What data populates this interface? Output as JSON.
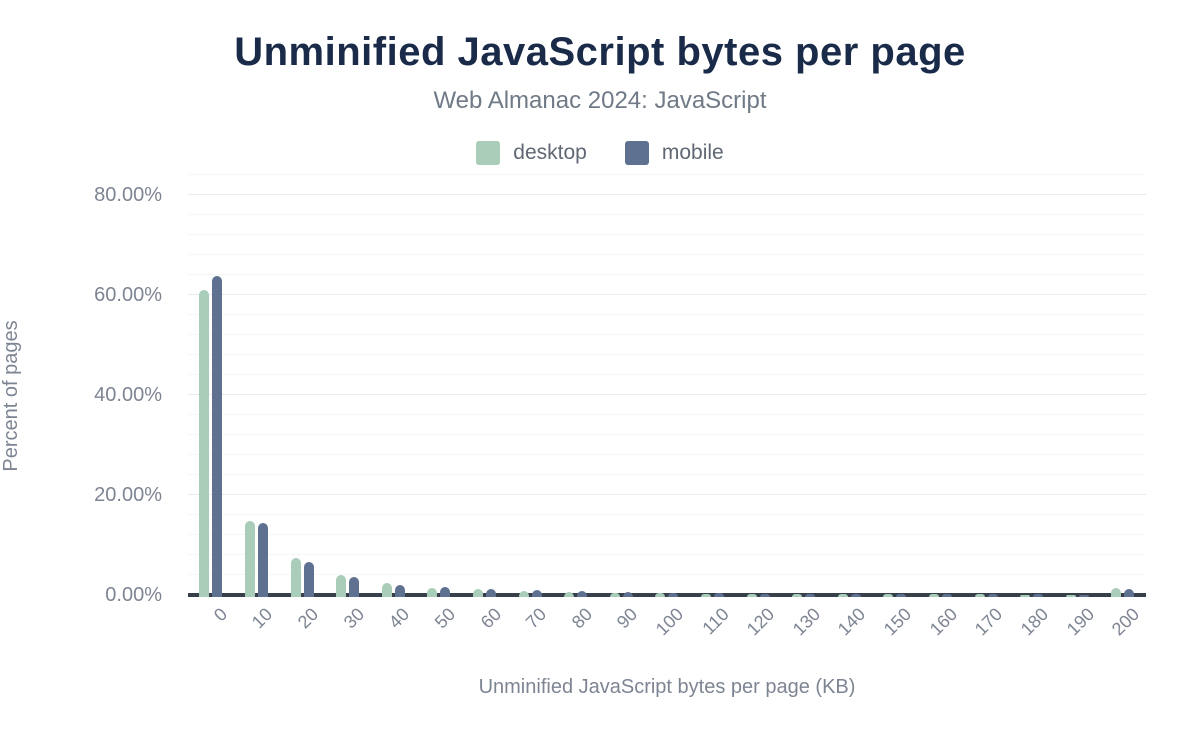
{
  "header": {
    "title": "Unminified JavaScript bytes per page",
    "subtitle": "Web Almanac 2024: JavaScript"
  },
  "legend": [
    {
      "label": "desktop",
      "color": "#a9cdb9"
    },
    {
      "label": "mobile",
      "color": "#5e7190"
    }
  ],
  "colors": {
    "title": "#1a2b49",
    "desktop_series": "#a9cdb9",
    "mobile_series": "#5e7190",
    "axis_line": "#373f4a",
    "axis_text": "#7d8593"
  },
  "chart_data": {
    "type": "bar",
    "title": "Unminified JavaScript bytes per page",
    "subtitle": "Web Almanac 2024: JavaScript",
    "categories": [
      "0",
      "10",
      "20",
      "30",
      "40",
      "50",
      "60",
      "70",
      "80",
      "90",
      "100",
      "110",
      "120",
      "130",
      "140",
      "150",
      "160",
      "170",
      "180",
      "190",
      "200"
    ],
    "series": [
      {
        "name": "desktop",
        "color": "#a9cdb9",
        "values": [
          61.0,
          14.9,
          7.4,
          4.1,
          2.4,
          1.5,
          1.2,
          0.9,
          0.7,
          0.5,
          0.5,
          0.3,
          0.3,
          0.25,
          0.2,
          0.2,
          0.2,
          0.15,
          0.1,
          0.1,
          1.5
        ]
      },
      {
        "name": "mobile",
        "color": "#5e7190",
        "values": [
          63.8,
          14.5,
          6.6,
          3.6,
          2.1,
          1.6,
          1.2,
          1.0,
          0.75,
          0.55,
          0.5,
          0.35,
          0.3,
          0.25,
          0.2,
          0.2,
          0.2,
          0.15,
          0.15,
          0.1,
          1.2
        ]
      }
    ],
    "xlabel": "Unminified JavaScript bytes per page (KB)",
    "ylabel": "Percent of pages",
    "ylim": [
      0,
      85
    ],
    "y_ticks": [
      {
        "value": 0,
        "label": "0.00%"
      },
      {
        "value": 20,
        "label": "20.00%"
      },
      {
        "value": 40,
        "label": "40.00%"
      },
      {
        "value": 60,
        "label": "60.00%"
      },
      {
        "value": 80,
        "label": "80.00%"
      }
    ],
    "grid": {
      "minor_every": 4,
      "major_every": 20,
      "on": true
    },
    "legend_position": "top"
  }
}
